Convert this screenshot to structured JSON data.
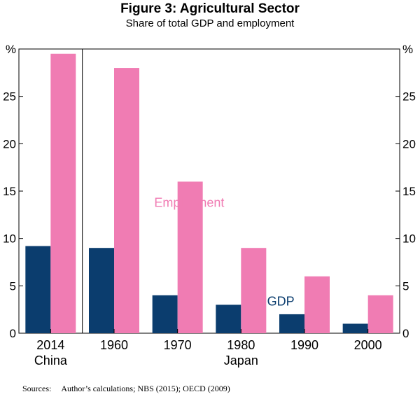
{
  "chart_data": {
    "type": "bar",
    "title": "Figure 3: Agricultural Sector",
    "subtitle": "Share of total GDP and employment",
    "ylabel": "%",
    "ylim": [
      0,
      30
    ],
    "yticks": [
      0,
      5,
      10,
      15,
      20,
      25
    ],
    "categories": [
      "2014",
      "1960",
      "1970",
      "1980",
      "1990",
      "2000"
    ],
    "groups": [
      {
        "label": "China",
        "categories": [
          "2014"
        ]
      },
      {
        "label": "Japan",
        "categories": [
          "1960",
          "1970",
          "1980",
          "1990",
          "2000"
        ]
      }
    ],
    "series": [
      {
        "name": "GDP",
        "color": "#0b3d6e",
        "values": [
          9.2,
          9.0,
          4.0,
          3.0,
          2.0,
          1.0
        ]
      },
      {
        "name": "Employment",
        "color": "#f07cb3",
        "values": [
          29.5,
          28.0,
          16.0,
          9.0,
          6.0,
          4.0
        ]
      }
    ],
    "legend": "inline labels",
    "grid": false
  },
  "source": {
    "label": "Sources:",
    "text": "Author’s calculations; NBS (2015); OECD (2009)"
  }
}
